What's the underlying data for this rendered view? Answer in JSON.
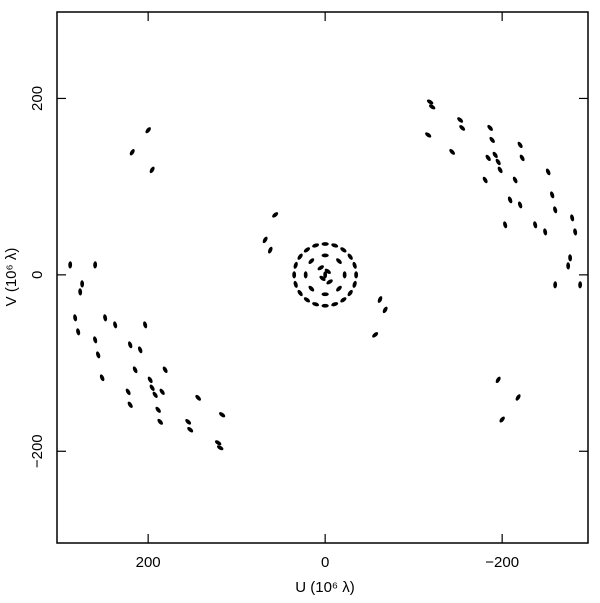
{
  "chart_data": {
    "type": "scatter",
    "xlabel": "U (10⁶ λ)",
    "ylabel": "V (10⁶ λ)",
    "xlim": [
      303,
      -297
    ],
    "ylim": [
      -304,
      298
    ],
    "xticks": [
      200,
      0,
      {
        "value": -200,
        "label": "−200"
      }
    ],
    "yticks": [
      {
        "value": -200,
        "label": "−200"
      },
      0,
      200
    ],
    "color": "#000000",
    "x": [
      -118.6,
      -120.9,
      -116.4,
      -152.5,
      -154.8,
      -143.5,
      -186.4,
      -188.7,
      -184.2,
      -192.1,
      -197.7,
      -220.3,
      -222.6,
      -214.7,
      -220.3,
      -252,
      -256.5,
      -259.9,
      -279.1,
      -282.5,
      -276.8,
      -274.6,
      -259.9,
      -288.1,
      -237.3,
      -203.4,
      -180.8,
      -248.6,
      -209,
      -195.5,
      118.6,
      120.9,
      116.4,
      152.5,
      154.8,
      143.5,
      186.4,
      188.7,
      184.2,
      192.1,
      197.7,
      220.3,
      222.6,
      214.7,
      220.3,
      252,
      256.5,
      259.9,
      279.1,
      282.5,
      276.8,
      274.6,
      259.9,
      288.1,
      237.3,
      203.4,
      180.8,
      248.6,
      209,
      195.5,
      35,
      33.3,
      28.3,
      20.6,
      10.8,
      0,
      -10.8,
      -20.6,
      -28.3,
      -33.3,
      -35,
      -33.3,
      -28.3,
      -20.6,
      -10.8,
      0,
      10.8,
      20.6,
      28.3,
      33.3,
      22,
      15.6,
      0,
      -15.6,
      -22,
      -15.6,
      0,
      15.6,
      0,
      5,
      -5,
      3,
      -3,
      56.5,
      67.8,
      62,
      -56.5,
      -67.8,
      -62,
      200,
      218,
      195.5,
      -200,
      -218,
      -195.5
    ],
    "y": [
      196,
      190.4,
      158.6,
      175.6,
      166.6,
      139.4,
      166.6,
      153,
      132.6,
      136,
      119,
      147.3,
      132.6,
      107.6,
      79.3,
      116.7,
      90.7,
      73.7,
      64.6,
      48.7,
      19.3,
      10.2,
      -11.3,
      -11.3,
      56.7,
      56.7,
      107.6,
      48.7,
      85,
      128,
      -196,
      -190.4,
      -158.6,
      -175.6,
      -166.6,
      -139.4,
      -166.6,
      -153,
      -132.6,
      -136,
      -119,
      -147.3,
      -132.6,
      -107.6,
      -79.3,
      -116.7,
      -90.7,
      -73.7,
      -64.6,
      -48.7,
      -19.3,
      -10.2,
      11.3,
      11.3,
      -56.7,
      -56.7,
      -107.6,
      -48.7,
      -85,
      -128,
      0,
      10.8,
      20.6,
      28.3,
      33.3,
      35,
      33.3,
      28.3,
      20.6,
      10.8,
      0,
      -10.8,
      -20.6,
      -28.3,
      -33.3,
      -35,
      -33.3,
      -28.3,
      -20.6,
      -10.8,
      0,
      15.6,
      22,
      15.6,
      0,
      -15.6,
      -22,
      -15.6,
      0,
      8,
      -8,
      -4,
      4,
      68,
      39.7,
      28,
      -68,
      -39.7,
      -28,
      164,
      139,
      119,
      -164,
      -139,
      -119
    ]
  }
}
